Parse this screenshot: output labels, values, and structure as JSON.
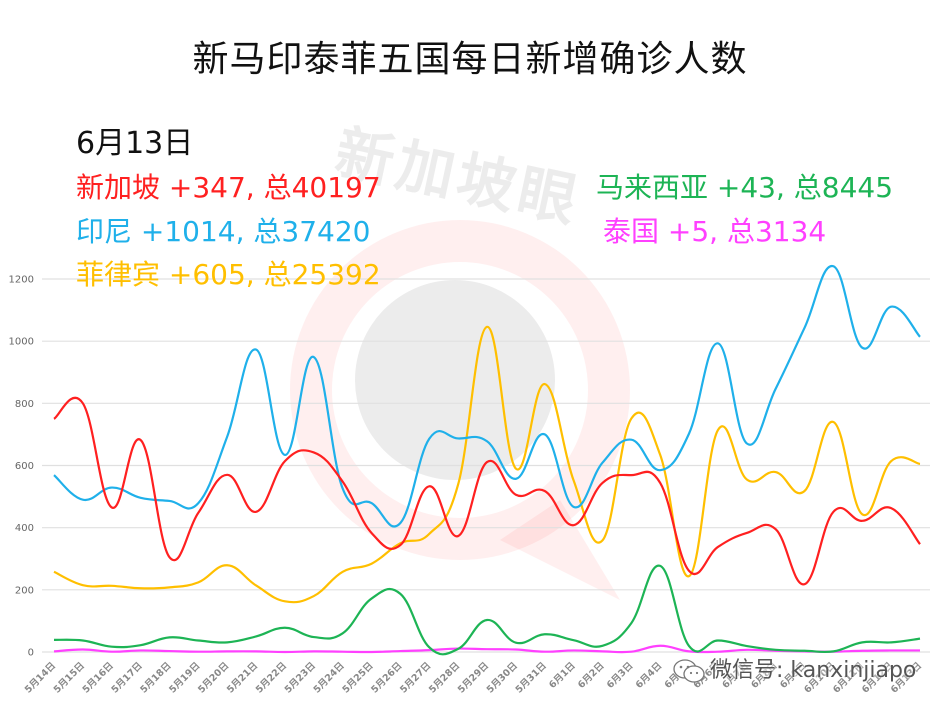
{
  "title": "新马印泰菲五国每日新增确诊人数",
  "date": "6月13日",
  "watermark": "新加坡眼",
  "footer": {
    "label": "微信号: kanxinjiapo",
    "icon": "wechat-icon"
  },
  "legend": [
    {
      "name": "新加坡",
      "text": "新加坡 +347, 总40197",
      "color": "#ff2020"
    },
    {
      "name": "印尼",
      "text": "印尼 +1014, 总37420",
      "color": "#1fb0ea"
    },
    {
      "name": "菲律宾",
      "text": "菲律宾 +605, 总25392",
      "color": "#ffbf00"
    },
    {
      "name": "马来西亚",
      "text": "马来西亚 +43, 总8445",
      "color": "#1db455"
    },
    {
      "name": "泰国",
      "text": "泰国 +5, 总3134",
      "color": "#ff40ff"
    }
  ],
  "chart_data": {
    "type": "line",
    "title": "新马印泰菲五国每日新增确诊人数",
    "subtitle": "6月13日",
    "xlabel": "",
    "ylabel": "",
    "ylim": [
      0,
      1200
    ],
    "yticks": [
      0,
      200,
      400,
      600,
      800,
      1000,
      1200
    ],
    "grid": true,
    "legend_position": "top (text annotations)",
    "x": [
      "5月14日",
      "5月15日",
      "5月16日",
      "5月17日",
      "5月18日",
      "5月19日",
      "5月20日",
      "5月21日",
      "5月22日",
      "5月23日",
      "5月24日",
      "5月25日",
      "5月26日",
      "5月27日",
      "5月28日",
      "5月29日",
      "5月30日",
      "5月31日",
      "6月1日",
      "6月2日",
      "6月3日",
      "6月4日",
      "6月5日",
      "6月6日",
      "6月7日",
      "6月8日",
      "6月9日",
      "6月10日",
      "6月11日",
      "6月12日",
      "6月13日"
    ],
    "series": [
      {
        "name": "新加坡",
        "color": "#ff2020",
        "values": [
          750,
          800,
          465,
          682,
          305,
          448,
          570,
          451,
          614,
          642,
          548,
          383,
          344,
          533,
          373,
          611,
          506,
          518,
          408,
          544,
          569,
          544,
          261,
          338,
          383,
          395,
          218,
          451,
          422,
          463,
          347
        ]
      },
      {
        "name": "印尼",
        "color": "#1fb0ea",
        "values": [
          569,
          490,
          529,
          496,
          486,
          479,
          693,
          973,
          634,
          949,
          526,
          479,
          415,
          686,
          687,
          678,
          557,
          700,
          467,
          609,
          683,
          585,
          703,
          993,
          671,
          847,
          1043,
          1241,
          979,
          1111,
          1014
        ]
      },
      {
        "name": "菲律宾",
        "color": "#ffbf00",
        "values": [
          258,
          215,
          213,
          205,
          208,
          224,
          279,
          214,
          163,
          180,
          258,
          284,
          350,
          380,
          539,
          1046,
          590,
          862,
          552,
          359,
          751,
          634,
          244,
          714,
          555,
          579,
          518,
          740,
          443,
          614,
          605
        ]
      },
      {
        "name": "马来西亚",
        "color": "#1db455",
        "values": [
          39,
          37,
          17,
          22,
          47,
          37,
          31,
          50,
          78,
          48,
          60,
          172,
          187,
          15,
          10,
          103,
          30,
          57,
          38,
          20,
          93,
          277,
          19,
          37,
          19,
          7,
          4,
          2,
          31,
          31,
          43
        ]
      },
      {
        "name": "泰国",
        "color": "#ff40ff",
        "values": [
          2,
          8,
          1,
          5,
          3,
          1,
          2,
          2,
          0,
          2,
          1,
          0,
          3,
          6,
          11,
          9,
          8,
          1,
          5,
          2,
          1,
          20,
          2,
          1,
          7,
          4,
          2,
          1,
          4,
          5,
          5
        ]
      }
    ]
  }
}
